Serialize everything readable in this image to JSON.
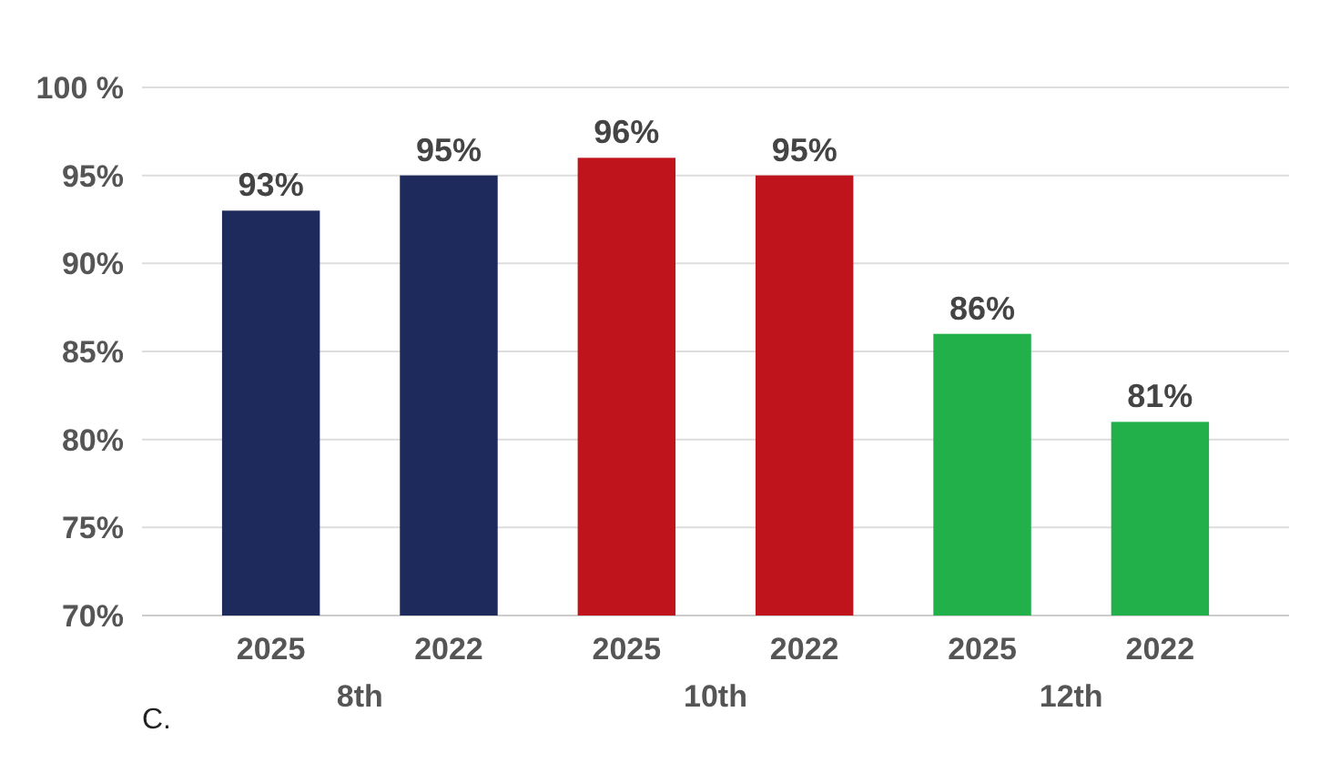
{
  "chart_data": {
    "type": "bar",
    "categories": [
      "2025",
      "2022",
      "2025",
      "2022",
      "2025",
      "2022"
    ],
    "values": [
      93,
      95,
      96,
      95,
      86,
      81
    ],
    "colors": [
      "#1f2a5c",
      "#1f2a5c",
      "#c0141c",
      "#c0141c",
      "#22b04b",
      "#22b04b"
    ],
    "value_labels": [
      "93%",
      "95%",
      "96%",
      "95%",
      "86%",
      "81%"
    ],
    "ylim": [
      70,
      100
    ],
    "yticks": [
      {
        "value": 70,
        "label": "70%"
      },
      {
        "value": 75,
        "label": "75%"
      },
      {
        "value": 80,
        "label": "80%"
      },
      {
        "value": 85,
        "label": "85%"
      },
      {
        "value": 90,
        "label": "90%"
      },
      {
        "value": 95,
        "label": "95%"
      },
      {
        "value": 100,
        "label": "100 %"
      }
    ],
    "grid": "y",
    "annotations": [
      "8th",
      "10th",
      "12th",
      "C."
    ]
  }
}
